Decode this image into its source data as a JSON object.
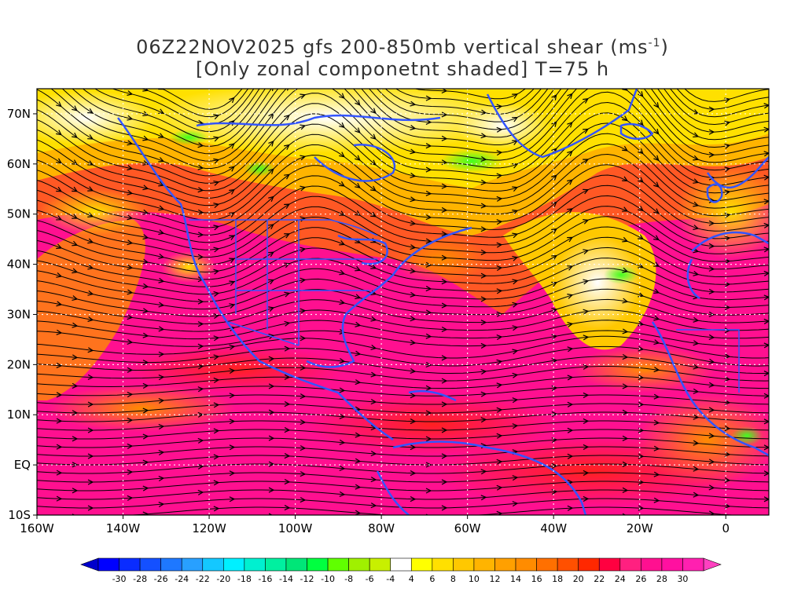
{
  "title": {
    "line1_prefix": "06Z22NOV2025 gfs 200-850mb vertical shear (ms",
    "line1_sup": "-1",
    "line1_suffix": ")",
    "line2": "[Only zonal componetnt shaded] T=75 h"
  },
  "map": {
    "lon_range": [
      -160,
      10
    ],
    "lat_range": [
      -10,
      75
    ],
    "lat_labels": [
      "70N",
      "60N",
      "50N",
      "40N",
      "30N",
      "20N",
      "10N",
      "EQ",
      "10S"
    ],
    "lat_values": [
      70,
      60,
      50,
      40,
      30,
      20,
      10,
      0,
      -10
    ],
    "lon_labels": [
      "160W",
      "140W",
      "120W",
      "100W",
      "80W",
      "60W",
      "40W",
      "20W",
      "0"
    ],
    "lon_values": [
      -160,
      -140,
      -120,
      -100,
      -80,
      -60,
      -40,
      -20,
      0
    ]
  },
  "colorbar": {
    "labels": [
      "-30",
      "-28",
      "-26",
      "-24",
      "-22",
      "-20",
      "-18",
      "-16",
      "-14",
      "-12",
      "-10",
      "-8",
      "-6",
      "-4",
      "4",
      "6",
      "8",
      "10",
      "12",
      "14",
      "16",
      "18",
      "20",
      "22",
      "24",
      "26",
      "28",
      "30"
    ],
    "colors": [
      "#0000ff",
      "#0a2cff",
      "#1450ff",
      "#1e78ff",
      "#28a0ff",
      "#14c8ff",
      "#00f0ff",
      "#00f0d0",
      "#00f0a0",
      "#00e678",
      "#00ff40",
      "#60ff00",
      "#a0f000",
      "#c8f000",
      "#ffffff",
      "#ffff00",
      "#ffe000",
      "#ffc800",
      "#ffb400",
      "#ffa000",
      "#ff8c00",
      "#ff7000",
      "#ff5000",
      "#ff2800",
      "#ff0040",
      "#ff2080",
      "#ff1090",
      "#ff10a0",
      "#ff20b0"
    ],
    "end_left": "#0000cc",
    "end_right": "#ff40c0"
  }
}
